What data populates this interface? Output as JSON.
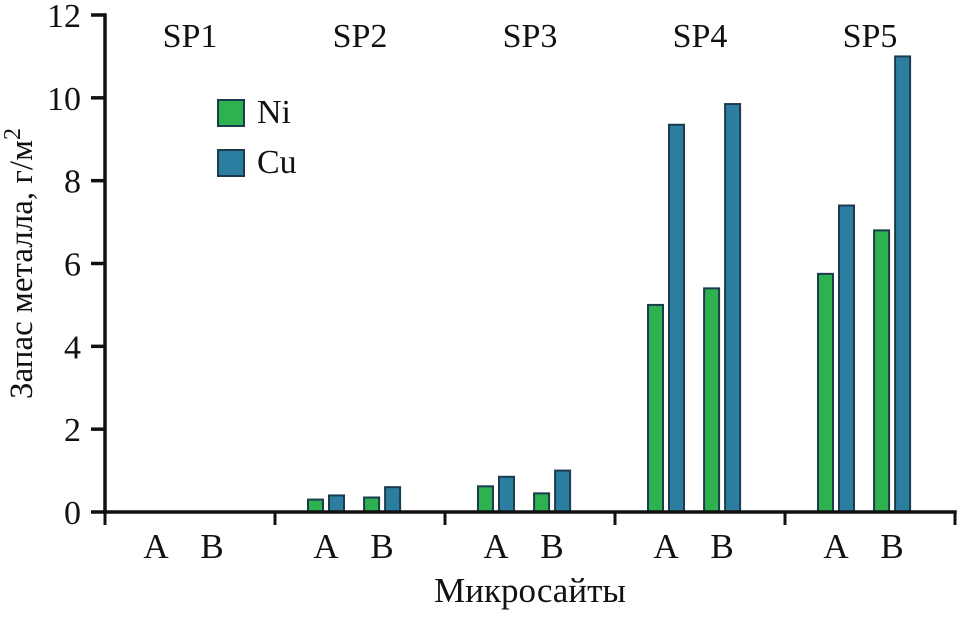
{
  "chart_data": {
    "type": "bar",
    "title": "",
    "xlabel": "Микросайты",
    "ylabel": "Запас металла, г/м²",
    "ylim": [
      0,
      12
    ],
    "yticks": [
      0,
      2,
      4,
      6,
      8,
      10,
      12
    ],
    "groups": [
      "SP1",
      "SP2",
      "SP3",
      "SP4",
      "SP5"
    ],
    "subsites": [
      "А",
      "В"
    ],
    "legend_position": "upper-left",
    "grid": false,
    "axis_color": "#111111",
    "bar_outline_color": "#1b3c4e",
    "series": [
      {
        "name": "Ni",
        "color": "#2eb14f",
        "values": [
          [
            0,
            0
          ],
          [
            0.3,
            0.35
          ],
          [
            0.62,
            0.45
          ],
          [
            5.0,
            5.4
          ],
          [
            5.75,
            6.8
          ]
        ]
      },
      {
        "name": "Cu",
        "color": "#2c7ea0",
        "values": [
          [
            0,
            0
          ],
          [
            0.4,
            0.6
          ],
          [
            0.85,
            1.0
          ],
          [
            9.35,
            9.85
          ],
          [
            7.4,
            11.0
          ]
        ]
      }
    ]
  }
}
